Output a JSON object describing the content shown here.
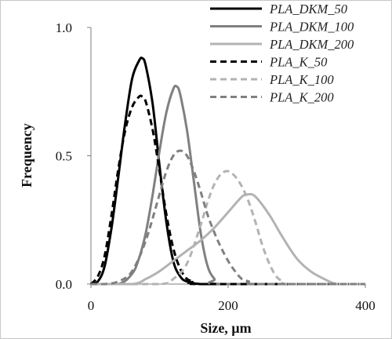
{
  "chart_data": {
    "type": "line",
    "xlabel": "Size, µm",
    "ylabel": "Frequency",
    "xlim": [
      0,
      400
    ],
    "ylim": [
      0,
      1.0
    ],
    "x_ticks": [
      "0",
      "200",
      "400"
    ],
    "y_ticks": [
      "0.0",
      "0.5",
      "1.0"
    ],
    "grid": false,
    "legend_position": "top-right",
    "series": [
      {
        "name": "PLA_DKM_50",
        "color": "#000000",
        "dash": "solid",
        "x": [
          0,
          10,
          20,
          30,
          40,
          50,
          60,
          70,
          75,
          80,
          90,
          100,
          110,
          120,
          130,
          140,
          160,
          200,
          400
        ],
        "y": [
          0.0,
          0.01,
          0.07,
          0.22,
          0.42,
          0.63,
          0.8,
          0.87,
          0.88,
          0.85,
          0.7,
          0.46,
          0.24,
          0.09,
          0.03,
          0.01,
          0.0,
          0.0,
          0.0
        ]
      },
      {
        "name": "PLA_DKM_100",
        "color": "#808080",
        "dash": "solid",
        "x": [
          0,
          40,
          60,
          70,
          80,
          90,
          100,
          110,
          120,
          125,
          130,
          140,
          150,
          160,
          170,
          180,
          190,
          400
        ],
        "y": [
          0.0,
          0.0,
          0.04,
          0.1,
          0.2,
          0.35,
          0.52,
          0.67,
          0.76,
          0.77,
          0.74,
          0.6,
          0.4,
          0.2,
          0.07,
          0.02,
          0.0,
          0.0
        ]
      },
      {
        "name": "PLA_DKM_200",
        "color": "#b3b3b3",
        "dash": "solid",
        "x": [
          0,
          60,
          80,
          100,
          120,
          140,
          160,
          180,
          200,
          220,
          230,
          240,
          260,
          280,
          300,
          320,
          340,
          360,
          400
        ],
        "y": [
          0.0,
          0.0,
          0.02,
          0.05,
          0.09,
          0.13,
          0.17,
          0.22,
          0.28,
          0.34,
          0.35,
          0.34,
          0.27,
          0.18,
          0.1,
          0.05,
          0.02,
          0.0,
          0.0
        ]
      },
      {
        "name": "PLA_K_50",
        "color": "#000000",
        "dash": "dashed",
        "x": [
          0,
          10,
          20,
          30,
          40,
          50,
          60,
          70,
          75,
          80,
          90,
          100,
          110,
          120,
          130,
          140,
          150,
          160,
          400
        ],
        "y": [
          0.0,
          0.03,
          0.11,
          0.27,
          0.45,
          0.6,
          0.69,
          0.73,
          0.73,
          0.71,
          0.6,
          0.44,
          0.27,
          0.14,
          0.06,
          0.02,
          0.01,
          0.0,
          0.0
        ]
      },
      {
        "name": "PLA_K_100",
        "color": "#b3b3b3",
        "dash": "dashed",
        "x": [
          0,
          100,
          120,
          140,
          160,
          170,
          180,
          190,
          200,
          210,
          220,
          230,
          240,
          250,
          260,
          270,
          280,
          290,
          400
        ],
        "y": [
          0.0,
          0.0,
          0.02,
          0.08,
          0.23,
          0.32,
          0.39,
          0.43,
          0.44,
          0.42,
          0.38,
          0.32,
          0.24,
          0.15,
          0.08,
          0.03,
          0.01,
          0.0,
          0.0
        ]
      },
      {
        "name": "PLA_K_200",
        "color": "#808080",
        "dash": "dashed",
        "x": [
          0,
          20,
          40,
          60,
          80,
          100,
          110,
          120,
          130,
          140,
          150,
          160,
          170,
          180,
          190,
          200,
          210,
          220,
          230,
          240,
          400
        ],
        "y": [
          0.0,
          0.0,
          0.01,
          0.05,
          0.17,
          0.35,
          0.44,
          0.5,
          0.52,
          0.5,
          0.44,
          0.36,
          0.27,
          0.2,
          0.14,
          0.09,
          0.05,
          0.02,
          0.01,
          0.0,
          0.0
        ]
      }
    ]
  }
}
